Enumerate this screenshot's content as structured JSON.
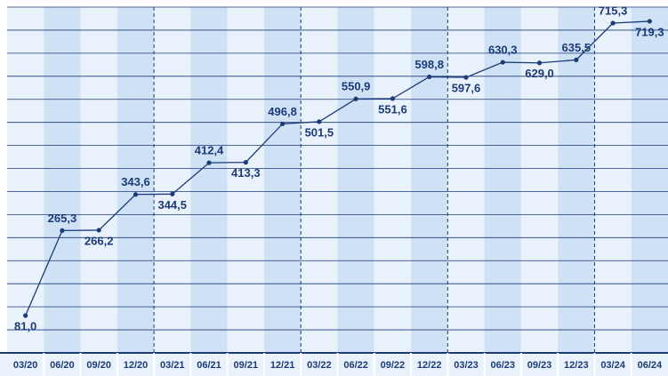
{
  "chart_data": {
    "type": "line",
    "categories": [
      "03/20",
      "06/20",
      "09/20",
      "12/20",
      "03/21",
      "06/21",
      "09/21",
      "12/21",
      "03/22",
      "06/22",
      "09/22",
      "12/22",
      "03/23",
      "06/23",
      "09/23",
      "12/23",
      "03/24",
      "06/24"
    ],
    "series": [
      {
        "color": "#1b3a78",
        "values": [
          81.0,
          265.3,
          266.2,
          343.6,
          344.5,
          412.4,
          413.3,
          496.8,
          501.5,
          550.9,
          551.6,
          598.8,
          597.6,
          630.3,
          629.0,
          635.5,
          715.3,
          719.3
        ],
        "value_labels": [
          "81,0",
          "265,3",
          "266,2",
          "343,6",
          "344,5",
          "412,4",
          "413,3",
          "496,8",
          "501,5",
          "550,9",
          "551,6",
          "598,8",
          "597,6",
          "630,3",
          "629,0",
          "635,5",
          "715,3",
          "719,3"
        ]
      }
    ],
    "ylim": [
      0,
      750
    ],
    "yticks": [
      0,
      50,
      100,
      150,
      200,
      250,
      300,
      350,
      400,
      450,
      500,
      550,
      600,
      650,
      700,
      750
    ],
    "grid": true
  }
}
